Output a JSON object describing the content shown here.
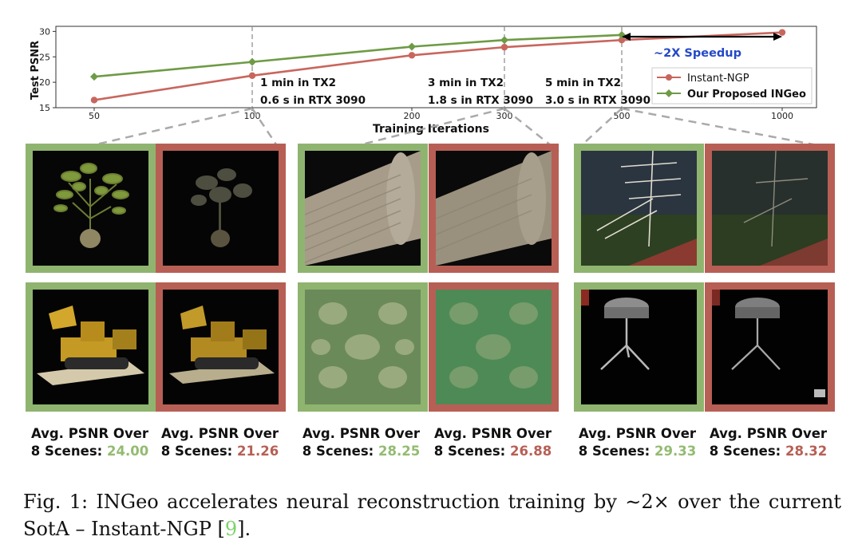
{
  "chart_data": {
    "type": "line",
    "ylabel": "Test PSNR",
    "xlabel": "Training Iterations",
    "x_ticks": [
      "50",
      "100",
      "200",
      "300",
      "500",
      "1000"
    ],
    "y_ticks": [
      "15",
      "20",
      "25",
      "30"
    ],
    "ylim": [
      15,
      31
    ],
    "grid": "vertical dashed at 100, 300, 500",
    "legend_position": "right",
    "series": [
      {
        "name": "Instant-NGP",
        "color": "#c8665d",
        "x": [
          "50",
          "100",
          "200",
          "300",
          "500",
          "1000"
        ],
        "values": [
          16.5,
          21.3,
          25.3,
          26.9,
          28.3,
          29.8
        ]
      },
      {
        "name": "Our Proposed INGeo",
        "color": "#6e9b45",
        "x": [
          "50",
          "100",
          "200",
          "300",
          "500"
        ],
        "values": [
          21.1,
          24.0,
          27.0,
          28.3,
          29.3
        ]
      }
    ],
    "annotations": [
      {
        "lines": [
          "1 min in TX2",
          "0.6 s in RTX 3090"
        ],
        "at": "100"
      },
      {
        "lines": [
          "3 min in TX2",
          "1.8 s in RTX 3090"
        ],
        "at": "300"
      },
      {
        "lines": [
          "5 min in TX2",
          "3.0 s in RTX 3090"
        ],
        "at": "500"
      }
    ],
    "speedup_label": "~2X Speedup",
    "speedup_color": "#2448c8"
  },
  "panels": [
    {
      "green_label": "Avg. PSNR Over",
      "green_label2": "8 Scenes:",
      "green_value": "24.00",
      "red_label": "Avg. PSNR Over",
      "red_label2": "8 Scenes:",
      "red_value": "21.26"
    },
    {
      "green_label": "Avg. PSNR Over",
      "green_label2": "8 Scenes:",
      "green_value": "28.25",
      "red_label": "Avg. PSNR Over",
      "red_label2": "8 Scenes:",
      "red_value": "26.88"
    },
    {
      "green_label": "Avg. PSNR Over",
      "green_label2": "8 Scenes:",
      "green_value": "29.33",
      "red_label": "Avg. PSNR Over",
      "red_label2": "8 Scenes:",
      "red_value": "28.32"
    }
  ],
  "frame_colors": {
    "green": "#8fb46f",
    "red": "#b75f55"
  },
  "figure_caption": {
    "prefix": "Fig. 1: INGeo accelerates neural reconstruction training by ∼2× over the current SotA – Instant-NGP [",
    "ref": "9",
    "suffix": "]."
  }
}
